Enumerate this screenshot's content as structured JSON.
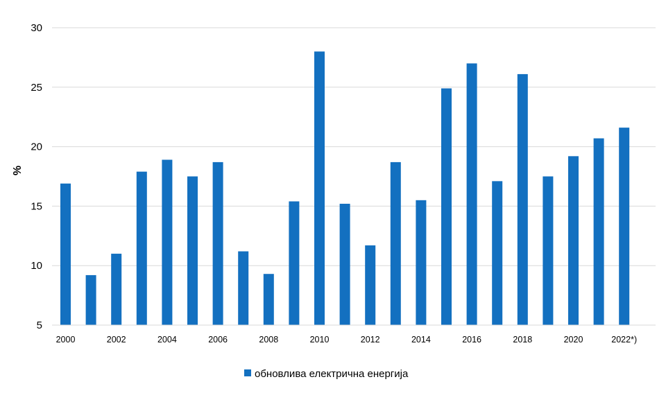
{
  "chart_data": {
    "type": "bar",
    "categories": [
      "2000",
      "2001",
      "2002",
      "2003",
      "2004",
      "2005",
      "2006",
      "2007",
      "2008",
      "2009",
      "2010",
      "2011",
      "2012",
      "2013",
      "2014",
      "2015",
      "2016",
      "2017",
      "2018",
      "2019",
      "2020",
      "2021",
      "2022*)"
    ],
    "x_tick_labels": [
      "2000",
      "",
      "2002",
      "",
      "2004",
      "",
      "2006",
      "",
      "2008",
      "",
      "2010",
      "",
      "2012",
      "",
      "2014",
      "",
      "2016",
      "",
      "2018",
      "",
      "2020",
      "",
      "2022*)"
    ],
    "series": [
      {
        "name": "обновлива електрична енергија",
        "values": [
          16.9,
          9.2,
          11.0,
          17.9,
          18.9,
          17.5,
          18.7,
          11.2,
          9.3,
          15.4,
          28.0,
          15.2,
          11.7,
          18.7,
          15.5,
          24.9,
          27.0,
          17.1,
          26.1,
          17.5,
          19.2,
          20.7,
          21.6
        ],
        "color": "#1370c0"
      }
    ],
    "ylabel": "%",
    "ylim": [
      5,
      30
    ],
    "yticks": [
      5,
      10,
      15,
      20,
      25,
      30
    ],
    "grid": true,
    "legend_position": "bottom"
  }
}
